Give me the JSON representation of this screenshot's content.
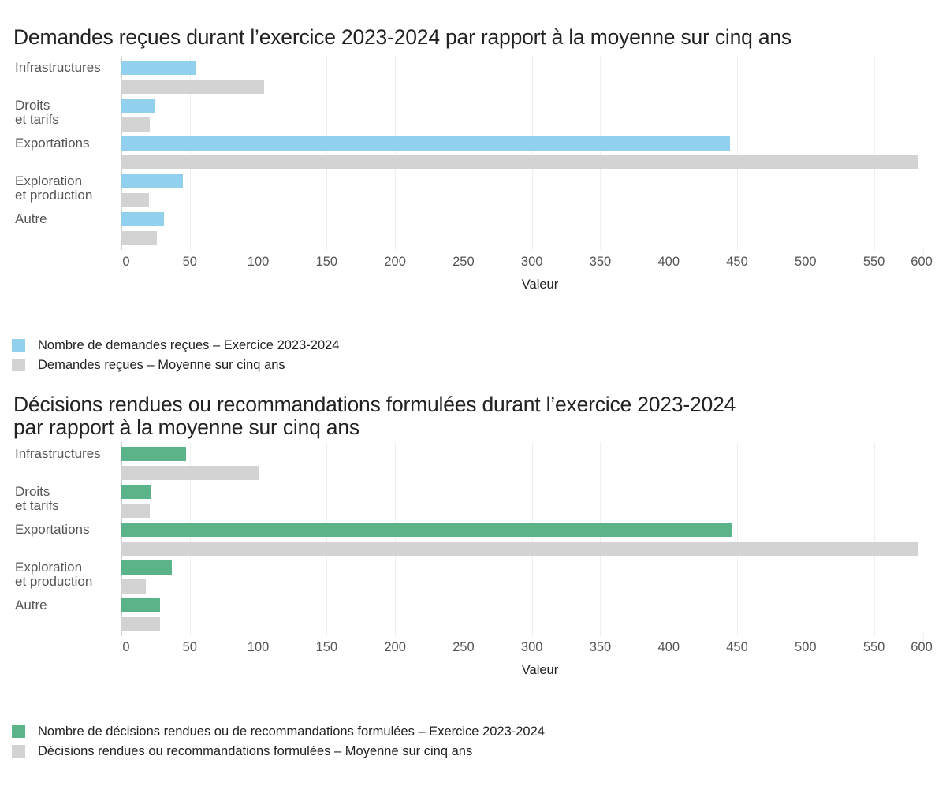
{
  "colors": {
    "current_blue": "#92D1EE",
    "current_green": "#5BB38A",
    "average_grey": "#D3D3D3",
    "grid": "#EFEFEF"
  },
  "chart_data": [
    {
      "type": "bar",
      "orientation": "horizontal",
      "title": "Demandes reçues durant l’exercice 2023-2024 par rapport à la moyenne sur cinq ans",
      "xlabel": "Valeur",
      "ylabel": "",
      "categories": [
        "Infrastructures",
        "Droits\net tarifs",
        "Exportations",
        "Exploration\net production",
        "Autre"
      ],
      "series": [
        {
          "name": "Nombre de demandes reçues – Exercice 2023-2024",
          "color": "#92D1EE",
          "values": [
            54,
            24,
            445,
            45,
            31
          ]
        },
        {
          "name": "Demandes reçues – Moyenne sur cinq ans",
          "color": "#D3D3D3",
          "values": [
            104,
            21,
            582,
            20,
            26
          ]
        }
      ],
      "xticks": [
        0,
        50,
        100,
        150,
        200,
        250,
        300,
        350,
        400,
        450,
        500,
        550,
        600
      ],
      "xlim": [
        0,
        600
      ],
      "grid": true,
      "legend_position": "bottom-left"
    },
    {
      "type": "bar",
      "orientation": "horizontal",
      "title": "Décisions rendues ou recommandations formulées durant l’exercice 2023-2024\npar rapport à la moyenne sur cinq ans",
      "xlabel": "Valeur",
      "ylabel": "",
      "categories": [
        "Infrastructures",
        "Droits\net tarifs",
        "Exportations",
        "Exploration\net production",
        "Autre"
      ],
      "series": [
        {
          "name": "Nombre de décisions rendues ou de recommandations formulées – Exercice 2023-2024",
          "color": "#5BB38A",
          "values": [
            47,
            22,
            446,
            37,
            28
          ]
        },
        {
          "name": "Décisions rendues ou recommandations formulées – Moyenne sur cinq ans",
          "color": "#D3D3D3",
          "values": [
            101,
            21,
            582,
            18,
            28
          ]
        }
      ],
      "xticks": [
        0,
        50,
        100,
        150,
        200,
        250,
        300,
        350,
        400,
        450,
        500,
        550,
        600
      ],
      "xlim": [
        0,
        600
      ],
      "grid": true,
      "legend_position": "bottom-left"
    }
  ],
  "charts": [
    {
      "title_line1": "Demandes reçues durant l’exercice 2023-2024 par rapport à la moyenne sur cinq ans",
      "title_line2": "",
      "xlabel": "Valeur",
      "legend": [
        "Nombre de demandes reçues – Exercice 2023-2024",
        "Demandes reçues – Moyenne sur cinq ans"
      ]
    },
    {
      "title_line1": "Décisions rendues ou recommandations formulées durant l’exercice 2023-2024",
      "title_line2": "par rapport à la moyenne sur cinq ans",
      "xlabel": "Valeur",
      "legend": [
        "Nombre de décisions rendues ou de recommandations formulées – Exercice 2023-2024",
        "Décisions rendues ou recommandations formulées – Moyenne sur cinq ans"
      ]
    }
  ]
}
